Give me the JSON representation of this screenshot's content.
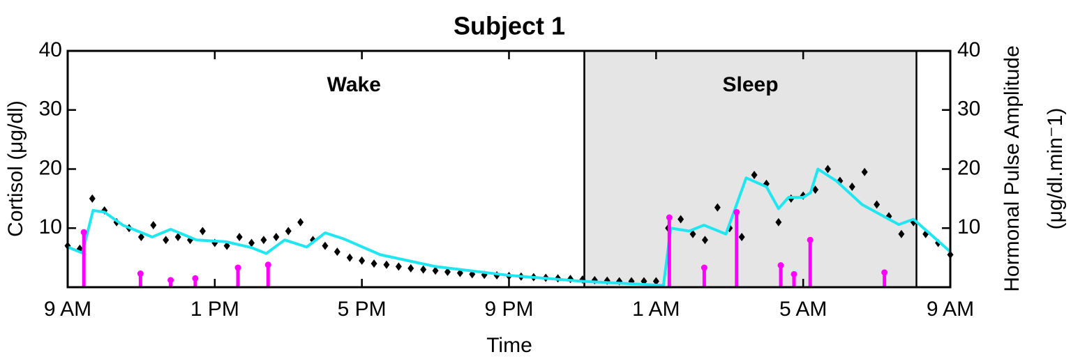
{
  "chart_data": {
    "type": "line",
    "title": "Subject 1",
    "x_label": "Time",
    "y_label": "Cortisol (μg/dl)",
    "y2_label": [
      "Hormonal Pulse Amplitude",
      "(μg/dl.min⁻1)"
    ],
    "xlim": [
      0,
      24
    ],
    "xticks": [
      {
        "value": 0,
        "label": "9 AM"
      },
      {
        "value": 4,
        "label": "1 PM"
      },
      {
        "value": 8,
        "label": "5 PM"
      },
      {
        "value": 12,
        "label": "9 PM"
      },
      {
        "value": 16,
        "label": "1 AM"
      },
      {
        "value": 20,
        "label": "5 AM"
      },
      {
        "value": 24,
        "label": "9 AM"
      }
    ],
    "ylim": [
      0,
      40
    ],
    "yticks": [
      10,
      20,
      30,
      40
    ],
    "y2lim": [
      0,
      40
    ],
    "y2ticks": [
      10,
      20,
      30,
      40
    ],
    "regions": [
      {
        "label": "Wake",
        "span": [
          0,
          14.05
        ],
        "color": "#ffffff"
      },
      {
        "label": "Sleep",
        "span": [
          14.05,
          23.08
        ],
        "color": "#e5e5e5"
      }
    ],
    "series": [
      {
        "kind": "diamond",
        "color": "#000000",
        "x": [
          0,
          0.33,
          0.67,
          1,
          1.33,
          1.67,
          2,
          2.33,
          2.67,
          3,
          3.33,
          3.67,
          4,
          4.33,
          4.67,
          5,
          5.33,
          5.67,
          6,
          6.33,
          6.67,
          7,
          7.33,
          7.67,
          8,
          8.33,
          8.67,
          9,
          9.33,
          9.67,
          10,
          10.33,
          10.67,
          11,
          11.33,
          11.67,
          12,
          12.33,
          12.67,
          13,
          13.33,
          13.67,
          14,
          14.33,
          14.67,
          15,
          15.33,
          15.67,
          16,
          16.33,
          16.67,
          17,
          17.33,
          17.67,
          18,
          18.33,
          18.67,
          19,
          19.33,
          19.67,
          20,
          20.33,
          20.67,
          21,
          21.33,
          21.67,
          22,
          22.33,
          22.67,
          23,
          23.33,
          23.67,
          24
        ],
        "values": [
          7,
          6.5,
          15,
          13,
          11,
          10,
          8.5,
          10.5,
          8,
          8.5,
          8,
          9.5,
          7.5,
          7,
          8.5,
          7.5,
          8,
          8.5,
          9.5,
          11,
          8,
          7,
          6,
          5,
          4.5,
          4,
          3.8,
          3.5,
          3.2,
          3,
          2.8,
          2.6,
          2.4,
          2.2,
          2.1,
          2,
          1.9,
          1.8,
          1.7,
          1.6,
          1.5,
          1.4,
          1.3,
          1.2,
          1.1,
          1,
          1,
          1,
          1,
          10,
          11.5,
          9,
          8,
          13.5,
          10,
          8.5,
          19,
          17.5,
          11,
          15,
          15.5,
          16.5,
          20,
          18,
          17,
          19.5,
          14,
          12,
          9,
          11,
          9,
          7.5,
          5.5
        ]
      },
      {
        "kind": "line",
        "color": "#1fe6f0",
        "x": [
          0,
          0.4,
          0.69,
          1.0,
          1.5,
          2.3,
          2.8,
          3.5,
          4.3,
          5.0,
          5.4,
          5.9,
          6.5,
          7.0,
          7.5,
          8.5,
          10,
          12,
          14,
          16.2,
          16.4,
          16.9,
          17.3,
          17.9,
          18.45,
          19.0,
          19.33,
          19.6,
          20.0,
          20.2,
          20.4,
          20.9,
          21.6,
          22.6,
          23.0,
          24
        ],
        "values": [
          6.8,
          5.8,
          13,
          12.7,
          10.5,
          8.5,
          9.8,
          8,
          7.7,
          6.7,
          5.7,
          8,
          6.8,
          9.2,
          8.2,
          5.5,
          3.5,
          2,
          1,
          0.3,
          10,
          9.5,
          10.5,
          9,
          18.5,
          17,
          13.3,
          15.2,
          15.2,
          16,
          20,
          18,
          14,
          10.6,
          11.5,
          6
        ]
      },
      {
        "kind": "stem",
        "axis": "y2",
        "color": "#ff00ff",
        "x": [
          0.44,
          1.98,
          2.8,
          3.47,
          4.63,
          5.45,
          16.36,
          17.31,
          18.19,
          19.39,
          19.75,
          20.19,
          22.21
        ],
        "values": [
          9.3,
          2.3,
          1.2,
          1.5,
          3.3,
          3.8,
          11.8,
          3.3,
          12.7,
          3.7,
          2.2,
          8,
          2.5
        ]
      }
    ]
  }
}
